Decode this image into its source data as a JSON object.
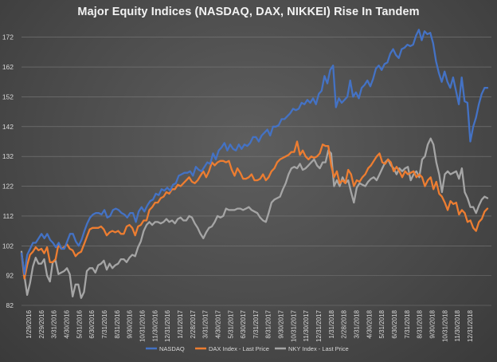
{
  "chart_data": {
    "type": "line",
    "title": "Major Equity Indices (NASDAQ, DAX, NIKKEI) Rise In Tandem",
    "xlabel": "",
    "ylabel": "",
    "ylim": [
      82,
      177
    ],
    "y_ticks": [
      82,
      92,
      102,
      112,
      122,
      132,
      142,
      152,
      162,
      172
    ],
    "x_tick_labels": [
      "1/29/2016",
      "2/29/2016",
      "3/31/2016",
      "4/30/2016",
      "5/31/2016",
      "6/30/2016",
      "7/31/2016",
      "8/31/2016",
      "9/30/2016",
      "10/31/2016",
      "11/30/2016",
      "12/31/2016",
      "1/31/2017",
      "2/28/2017",
      "3/31/2017",
      "4/30/2017",
      "5/31/2017",
      "6/30/2017",
      "7/31/2017",
      "8/31/2017",
      "9/30/2017",
      "10/31/2017",
      "11/30/2017",
      "12/31/2017",
      "1/31/2018",
      "2/28/2018",
      "3/31/2018",
      "4/30/2018",
      "5/31/2018",
      "6/30/2018",
      "7/31/2018",
      "8/31/2018",
      "9/30/2018",
      "10/31/2018",
      "11/30/2018",
      "12/31/2018"
    ],
    "grid": true,
    "legend_position": "bottom",
    "series": [
      {
        "name": "NASDAQ",
        "color": "#4472c4",
        "values": [
          99.5,
          92.5,
          99,
          101,
          103,
          103,
          104.5,
          106,
          104.5,
          106,
          104,
          103,
          101.5,
          103,
          101,
          101,
          103.5,
          106,
          106,
          103.5,
          102,
          104,
          107,
          109.5,
          111.5,
          112.5,
          113,
          113,
          112.5,
          114,
          111.5,
          112,
          114,
          114.5,
          114,
          113,
          112.5,
          111.5,
          113,
          113,
          110,
          113.5,
          115,
          113.5,
          115.5,
          117,
          117.5,
          119.5,
          119,
          121,
          120.5,
          121.5,
          120.5,
          122.5,
          123,
          125.5,
          126,
          126.5,
          126.5,
          127,
          125.5,
          128.5,
          127.5,
          127,
          128.5,
          130,
          129.5,
          133,
          131,
          134,
          135,
          136.5,
          134,
          136,
          134.5,
          134,
          136,
          134.5,
          136,
          135.5,
          136.5,
          138.5,
          138.5,
          137,
          139,
          140,
          141,
          139,
          142,
          142,
          142.5,
          144.5,
          144.5,
          145.5,
          146.5,
          148,
          147.5,
          148,
          150,
          149.5,
          151,
          150,
          151.5,
          149.5,
          153,
          154,
          159,
          156.5,
          161,
          162.5,
          148.5,
          151.5,
          150,
          151,
          152,
          157.5,
          152,
          153.5,
          151.5,
          155,
          156,
          157.5,
          155.5,
          158,
          161.5,
          162.5,
          161,
          163,
          163.5,
          166.5,
          168,
          166,
          165,
          168,
          168.5,
          169.5,
          169,
          169.5,
          172.5,
          174.5,
          171,
          174,
          173,
          173.5,
          170,
          164,
          160,
          157,
          160.5,
          157,
          155,
          158.5,
          154,
          149.5,
          158.5,
          150.5,
          150,
          137,
          142,
          145,
          149.5,
          153,
          155,
          155
        ]
      },
      {
        "name": "DAX Index - Last Price",
        "color": "#ed7d31",
        "values": [
          99.5,
          91,
          95.5,
          99,
          100,
          101.5,
          100.5,
          101,
          99.5,
          101.5,
          96.5,
          96.5,
          97.5,
          102.5,
          101,
          101.5,
          102.5,
          101,
          100.5,
          98.5,
          99.5,
          100,
          102.5,
          105,
          107.5,
          108,
          108,
          108,
          108.5,
          107.5,
          105.5,
          106.5,
          107,
          106.5,
          107,
          106,
          106,
          108.5,
          109,
          108,
          105.5,
          108.5,
          109,
          110.5,
          110.5,
          114,
          115,
          116.5,
          116.5,
          118,
          118.5,
          120,
          119.5,
          121,
          121,
          122.5,
          122,
          123,
          124,
          125,
          123.5,
          123,
          124,
          125.5,
          127,
          125,
          127,
          130,
          129,
          130,
          130.5,
          130.5,
          130,
          130.5,
          127.5,
          125.5,
          128,
          126.5,
          124.5,
          124.5,
          125,
          126,
          124,
          124,
          124.5,
          126,
          124,
          125,
          127,
          128,
          130,
          131,
          131.5,
          132,
          132.5,
          133.5,
          133.5,
          137,
          132.5,
          134,
          132,
          131,
          132,
          131.5,
          132,
          133,
          136,
          135.5,
          135.5,
          129,
          125,
          127,
          123,
          124,
          123,
          127.5,
          126,
          122,
          124,
          123.5,
          125,
          126,
          128,
          129,
          130.5,
          132,
          133,
          130,
          129.5,
          131,
          130,
          127,
          128.5,
          127,
          125,
          127,
          126,
          126.5,
          127,
          125,
          126,
          125,
          122,
          124,
          125,
          121,
          123.5,
          119.5,
          118.5,
          116.5,
          114,
          117,
          116,
          116.5,
          112.5,
          114,
          113,
          110,
          110.5,
          108,
          107,
          110,
          111,
          113.5,
          114.5
        ]
      },
      {
        "name": "NKY Index - Last Price",
        "color": "#a5a5a5",
        "values": [
          100,
          92,
          85.5,
          89.5,
          95,
          98,
          96,
          96,
          97.5,
          92,
          90,
          96.5,
          97,
          92.5,
          93,
          93.5,
          94.5,
          92.5,
          85,
          89,
          89,
          84.5,
          86.5,
          93.5,
          94.5,
          94.5,
          93,
          95.5,
          96,
          97,
          94,
          96,
          94.5,
          95.5,
          96,
          97.5,
          97.5,
          96.5,
          98,
          99,
          98.5,
          101.5,
          103.5,
          107,
          109,
          110,
          109,
          110,
          110,
          109.5,
          110,
          111,
          110,
          110.5,
          109.5,
          111,
          111.5,
          110.5,
          110.5,
          112,
          111.5,
          109.5,
          108,
          106,
          104.5,
          106.5,
          108,
          108.5,
          110,
          112,
          111.5,
          112,
          114.5,
          114,
          114,
          114,
          114.5,
          114.5,
          114,
          114.5,
          115,
          114,
          113.5,
          113,
          111.5,
          110.5,
          110,
          113,
          116.5,
          117.5,
          118,
          118.5,
          121,
          123,
          126,
          128,
          128.5,
          128,
          129.5,
          127.5,
          128,
          129,
          130,
          131,
          129,
          128,
          130,
          130,
          134,
          133,
          122,
          124,
          122,
          125,
          123,
          124,
          120,
          116.5,
          121.5,
          123,
          122.5,
          122,
          123.5,
          124.5,
          125,
          124,
          126,
          128,
          130,
          131,
          129,
          128,
          126,
          128,
          127,
          128,
          128.5,
          124,
          126,
          127,
          125,
          131,
          132,
          136,
          138,
          136,
          130,
          126,
          120,
          126,
          127,
          126,
          126.5,
          127,
          124.5,
          128,
          120,
          118,
          115,
          115,
          113,
          115.5,
          117.5,
          118.5,
          118
        ]
      }
    ]
  }
}
